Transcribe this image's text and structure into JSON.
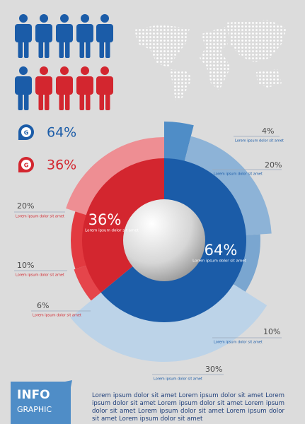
{
  "legend": [
    {
      "icon": "G"
    },
    {
      "icon": "G"
    }
  ],
  "chart_data": {
    "type": "donut",
    "values": [
      64,
      36
    ],
    "value_labels": [
      "64%",
      "36%"
    ],
    "colors": [
      "#1b5ca8",
      "#d3262f"
    ],
    "captions": [
      "Lorem ipsum dolor sit amet",
      "Lorem ipsum dolor sit amet"
    ],
    "outer": {
      "values": [
        4,
        20,
        10,
        30,
        6,
        10,
        20
      ],
      "value_labels": [
        "4%",
        "20%",
        "10%",
        "30%",
        "6%",
        "10%",
        "20%"
      ],
      "colors": [
        "#4f8dc7",
        "#8db3d7",
        "#7aa6d0",
        "#bcd3e8",
        "#e5454b",
        "#e23a40",
        "#ee8e93"
      ],
      "captions": [
        "Lorem ipsum dolor sit amet",
        "Lorem ipsum dolor sit amet",
        "Lorem ipsum dolor sit amet",
        "Lorem ipsum dolor sit amet",
        "Lorem ipsum dolor sit amet",
        "Lorem ipsum dolor sit amet",
        "Lorem ipsum dolor sit amet"
      ]
    }
  },
  "footer": {
    "badge_title": "INFO",
    "badge_subtitle": "GRAPHIC",
    "text": "Lorem ipsum dolor sit amet Lorem ipsum dolor sit amet Lorem ipsum dolor sit amet Lorem ipsum dolor sit amet Lorem ipsum dolor sit amet Lorem ipsum dolor sit amet Lorem ipsum dolor sit amet Lorem ipsum dolor sit amet"
  }
}
